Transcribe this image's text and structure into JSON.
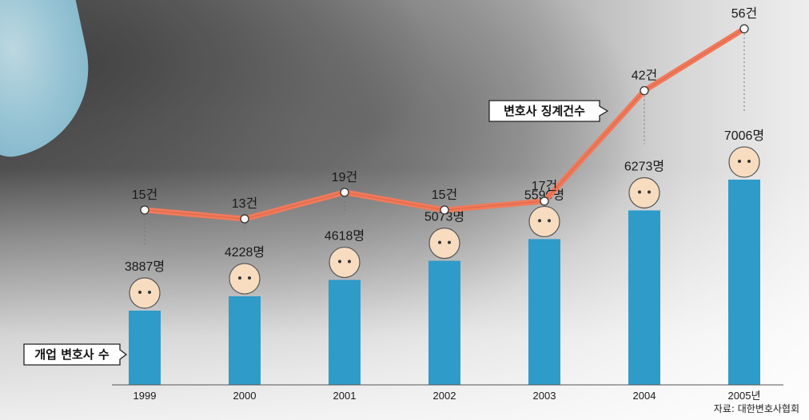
{
  "chart_data": {
    "type": "bar+line",
    "categories": [
      "1999",
      "2000",
      "2001",
      "2002",
      "2003",
      "2004",
      "2005년"
    ],
    "series": [
      {
        "name": "개업 변호사 수",
        "type": "bar",
        "color": "#2f9bc9",
        "values": [
          3887,
          4228,
          4618,
          5073,
          5590,
          6273,
          7006
        ],
        "data_labels": [
          "3887명",
          "4228명",
          "4618명",
          "5073명",
          "5590명",
          "6273명",
          "7006명"
        ]
      },
      {
        "name": "변호사 징계건수",
        "type": "line",
        "color": "#f07a5a",
        "values": [
          15,
          13,
          19,
          15,
          17,
          42,
          56
        ],
        "data_labels": [
          "15건",
          "13건",
          "19건",
          "15건",
          "17건",
          "42건",
          "56건"
        ]
      }
    ],
    "source": "자료: 대한변호사협회"
  }
}
